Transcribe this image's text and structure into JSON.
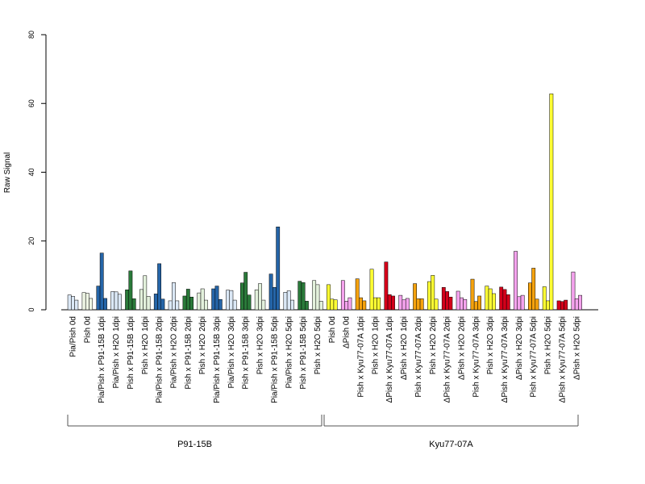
{
  "chart_data": {
    "type": "bar",
    "title": "",
    "xlabel": "",
    "ylabel": "Raw Signal",
    "ylim": [
      0,
      80
    ],
    "yticks": [
      0,
      20,
      40,
      60,
      80
    ],
    "grid": false,
    "categories": [
      "Pia/Pish 0d",
      "Pish 0d",
      "Pia/Pish x P91-15B 1dpi",
      "Pia/Pish x H2O 1dpi",
      "Pish x P91-15B 1dpi",
      "Pish x H2O 1dpi",
      "Pia/Pish x P91-15B 2dpi",
      "Pia/Pish x H2O 2dpi",
      "Pish x P91-15B 2dpi",
      "Pish x H2O 2dpi",
      "Pia/Pish x P91-15B 3dpi",
      "Pia/Pish x H2O 3dpi",
      "Pish x P91-15B 3dpi",
      "Pish x H2O 3dpi",
      "Pia/Pish x P91-15B 5dpi",
      "Pia/Pish x H2O 5dpi",
      "Pish x P91-15B 5dpi",
      "Pish x H2O 5dpi",
      "Pish 0d",
      "ΔPish 0d",
      "Pish x Kyu77-07A 1dpi",
      "Pish x H2O 1dpi",
      "ΔPish x Kyu77-07A 1dpi",
      "ΔPish x H2O 1dpi",
      "Pish x Kyu77-07A 2dpi",
      "Pish x H2O 2dpi",
      "ΔPish x Kyu77-07A 2dpi",
      "ΔPish x H2O 2dpi",
      "Pish x Kyu77-07A 3dpi",
      "Pish x H2O 3dpi",
      "ΔPish x Kyu77-07A 3dpi",
      "ΔPish x H2O 3dpi",
      "Pish x Kyu77-07A 5dpi",
      "Pish x H2O 5dpi",
      "ΔPish x Kyu77-07A 5dpi",
      "ΔPish x H2O 5dpi"
    ],
    "colors": [
      "#dbe8f6",
      "#eef5e4",
      "#2565a8",
      "#dbe8f6",
      "#2a7a3a",
      "#e3f1dc",
      "#2565a8",
      "#dbe8f6",
      "#2a7a3a",
      "#e3f1dc",
      "#2565a8",
      "#dbe8f6",
      "#2a7a3a",
      "#e3f1dc",
      "#2565a8",
      "#dbe8f6",
      "#2a7a3a",
      "#e3f1dc",
      "#ffff33",
      "#f5a3ee",
      "#f5a20d",
      "#ffff33",
      "#d4001a",
      "#f5a3ee",
      "#f5a20d",
      "#ffff33",
      "#d4001a",
      "#f5a3ee",
      "#f5a20d",
      "#ffff33",
      "#d4001a",
      "#f5a3ee",
      "#f5a20d",
      "#ffff33",
      "#d4001a",
      "#f5a3ee"
    ],
    "values": [
      [
        4.3,
        3.9,
        2.8
      ],
      [
        5.0,
        4.8,
        3.3
      ],
      [
        6.9,
        16.5,
        3.3
      ],
      [
        5.3,
        5.2,
        4.5
      ],
      [
        5.8,
        11.3,
        3.2
      ],
      [
        5.9,
        9.9,
        3.9
      ],
      [
        4.6,
        13.4,
        3.1
      ],
      [
        2.6,
        7.9,
        2.6
      ],
      [
        4.0,
        6.0,
        3.7
      ],
      [
        4.9,
        6.1,
        2.8
      ],
      [
        6.1,
        6.9,
        3.0
      ],
      [
        5.7,
        5.6,
        2.8
      ],
      [
        7.8,
        10.9,
        4.3
      ],
      [
        5.8,
        7.6,
        2.8
      ],
      [
        10.4,
        6.5,
        24.1
      ],
      [
        5.1,
        5.5,
        2.8
      ],
      [
        8.3,
        7.9,
        2.5
      ],
      [
        8.5,
        7.3,
        2.5
      ],
      [
        7.3,
        3.1,
        2.9
      ],
      [
        8.5,
        2.5,
        3.5
      ],
      [
        9.0,
        3.5,
        2.6
      ],
      [
        11.8,
        3.5,
        3.5
      ],
      [
        13.9,
        4.4,
        4.0
      ],
      [
        4.2,
        2.9,
        3.3
      ],
      [
        7.6,
        3.2,
        3.2
      ],
      [
        8.2,
        10.0,
        3.1
      ],
      [
        6.5,
        5.3,
        3.7
      ],
      [
        5.4,
        3.5,
        3.0
      ],
      [
        8.9,
        2.4,
        4.0
      ],
      [
        6.9,
        6.1,
        4.7
      ],
      [
        6.6,
        5.9,
        4.4
      ],
      [
        17.0,
        3.8,
        4.2
      ],
      [
        7.8,
        12.1,
        3.1
      ],
      [
        6.7,
        2.6,
        62.8
      ],
      [
        2.6,
        2.4,
        2.8
      ],
      [
        11.0,
        3.2,
        4.2
      ]
    ],
    "groups": [
      {
        "label": "P91-15B",
        "start": 0,
        "end": 17
      },
      {
        "label": "Kyu77-07A",
        "start": 18,
        "end": 35
      }
    ]
  }
}
